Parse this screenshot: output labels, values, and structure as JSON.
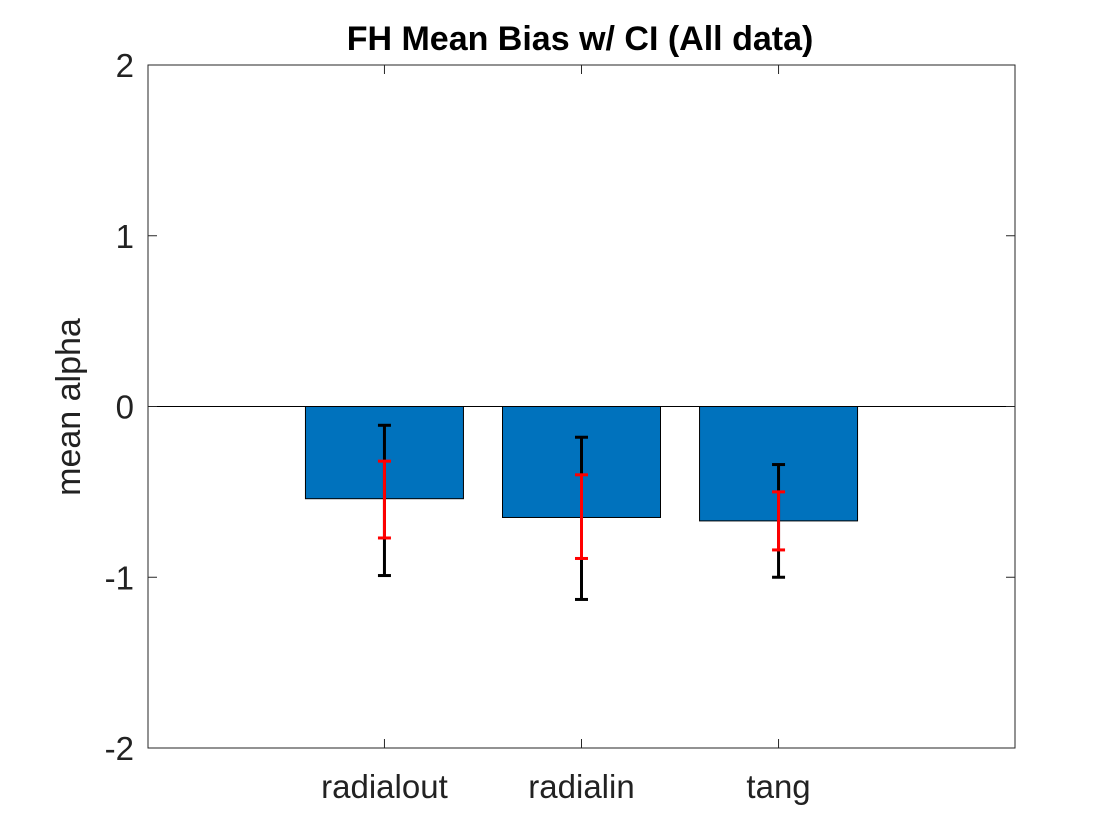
{
  "chart_data": {
    "type": "bar",
    "title": "FH Mean Bias w/ CI (All data)",
    "xlabel": "",
    "ylabel": "mean alpha",
    "categories": [
      "radialout",
      "radialin",
      "tang"
    ],
    "values": [
      -0.54,
      -0.65,
      -0.67
    ],
    "inner_ci": [
      [
        -0.77,
        -0.32
      ],
      [
        -0.89,
        -0.4
      ],
      [
        -0.84,
        -0.5
      ]
    ],
    "outer_ci": [
      [
        -0.99,
        -0.11
      ],
      [
        -1.13,
        -0.18
      ],
      [
        -1.0,
        -0.34
      ]
    ],
    "ylim": [
      -2,
      2
    ],
    "xlim": [
      -0.2,
      4.2
    ],
    "yticks": [
      -2,
      -1,
      0,
      1,
      2
    ],
    "ytick_labels": [
      "-2",
      "-1",
      "0",
      "1",
      "2"
    ],
    "grid": false,
    "colors": {
      "bar": "#0072BD",
      "inner_ci": "#FF0000",
      "outer_ci": "#000000",
      "axes": "#262626"
    }
  }
}
